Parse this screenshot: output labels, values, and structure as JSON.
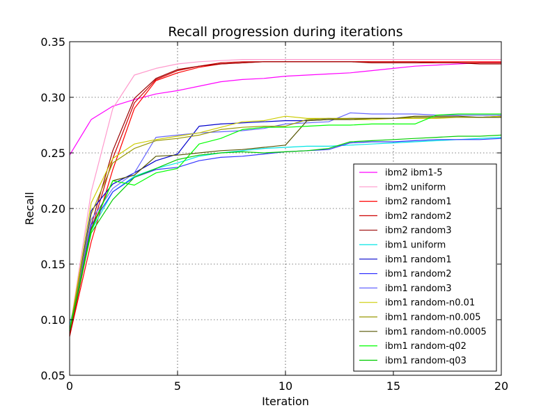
{
  "chart_data": {
    "type": "line",
    "title": "Recall progression during iterations",
    "xlabel": "Iteration",
    "ylabel": "Recall",
    "xlim": [
      0,
      20
    ],
    "ylim": [
      0.05,
      0.35
    ],
    "xticks": [
      0,
      5,
      10,
      15,
      20
    ],
    "yticks": [
      0.05,
      0.1,
      0.15,
      0.2,
      0.25,
      0.3,
      0.35
    ],
    "xtick_labels": [
      "0",
      "5",
      "10",
      "15",
      "20"
    ],
    "ytick_labels": [
      "0.05",
      "0.10",
      "0.15",
      "0.20",
      "0.25",
      "0.30",
      "0.35"
    ],
    "grid": true,
    "legend_position": "lower-right",
    "x": [
      0,
      1,
      2,
      3,
      4,
      5,
      6,
      7,
      8,
      9,
      10,
      11,
      12,
      13,
      14,
      15,
      16,
      17,
      18,
      19,
      20
    ],
    "series": [
      {
        "name": "ibm2 ibm1-5",
        "color": "#ff00ff",
        "values": [
          0.248,
          0.28,
          0.292,
          0.298,
          0.303,
          0.306,
          0.31,
          0.314,
          0.316,
          0.317,
          0.319,
          0.32,
          0.321,
          0.322,
          0.324,
          0.326,
          0.328,
          0.329,
          0.33,
          0.331,
          0.331
        ]
      },
      {
        "name": "ibm2 uniform",
        "color": "#ff99cc",
        "values": [
          0.09,
          0.215,
          0.29,
          0.32,
          0.326,
          0.33,
          0.332,
          0.333,
          0.334,
          0.334,
          0.334,
          0.334,
          0.334,
          0.334,
          0.334,
          0.334,
          0.334,
          0.334,
          0.334,
          0.334,
          0.334
        ]
      },
      {
        "name": "ibm2 random1",
        "color": "#ff0000",
        "values": [
          0.085,
          0.17,
          0.235,
          0.29,
          0.315,
          0.322,
          0.327,
          0.33,
          0.331,
          0.332,
          0.332,
          0.332,
          0.332,
          0.332,
          0.332,
          0.332,
          0.332,
          0.332,
          0.332,
          0.332,
          0.332
        ]
      },
      {
        "name": "ibm2 random2",
        "color": "#cc0000",
        "values": [
          0.085,
          0.18,
          0.245,
          0.295,
          0.316,
          0.324,
          0.328,
          0.331,
          0.332,
          0.332,
          0.332,
          0.332,
          0.332,
          0.332,
          0.332,
          0.332,
          0.332,
          0.331,
          0.331,
          0.331,
          0.331
        ]
      },
      {
        "name": "ibm2 random3",
        "color": "#990000",
        "values": [
          0.088,
          0.185,
          0.252,
          0.299,
          0.317,
          0.325,
          0.328,
          0.33,
          0.331,
          0.332,
          0.332,
          0.332,
          0.332,
          0.332,
          0.331,
          0.331,
          0.331,
          0.331,
          0.331,
          0.33,
          0.33
        ]
      },
      {
        "name": "ibm1 uniform",
        "color": "#00e5e5",
        "values": [
          0.095,
          0.18,
          0.215,
          0.229,
          0.236,
          0.241,
          0.247,
          0.25,
          0.252,
          0.254,
          0.255,
          0.256,
          0.256,
          0.257,
          0.258,
          0.259,
          0.26,
          0.261,
          0.262,
          0.263,
          0.264
        ]
      },
      {
        "name": "ibm1 random1",
        "color": "#0000cc",
        "values": [
          0.09,
          0.198,
          0.222,
          0.232,
          0.243,
          0.249,
          0.274,
          0.276,
          0.277,
          0.278,
          0.279,
          0.279,
          0.28,
          0.281,
          0.281,
          0.281,
          0.282,
          0.282,
          0.282,
          0.282,
          0.283
        ]
      },
      {
        "name": "ibm1 random2",
        "color": "#3333ff",
        "values": [
          0.09,
          0.185,
          0.215,
          0.228,
          0.235,
          0.237,
          0.243,
          0.246,
          0.247,
          0.249,
          0.251,
          0.252,
          0.253,
          0.259,
          0.26,
          0.26,
          0.261,
          0.262,
          0.262,
          0.262,
          0.263
        ]
      },
      {
        "name": "ibm1 random3",
        "color": "#6666ff",
        "values": [
          0.09,
          0.19,
          0.218,
          0.232,
          0.264,
          0.266,
          0.268,
          0.269,
          0.27,
          0.272,
          0.276,
          0.277,
          0.278,
          0.286,
          0.285,
          0.285,
          0.285,
          0.284,
          0.284,
          0.284,
          0.284
        ]
      },
      {
        "name": "ibm1 random-n0.01",
        "color": "#cccc00",
        "values": [
          0.09,
          0.205,
          0.245,
          0.258,
          0.262,
          0.265,
          0.268,
          0.273,
          0.278,
          0.279,
          0.283,
          0.281,
          0.281,
          0.28,
          0.28,
          0.281,
          0.281,
          0.281,
          0.282,
          0.282,
          0.283
        ]
      },
      {
        "name": "ibm1 random-n0.005",
        "color": "#999900",
        "values": [
          0.09,
          0.195,
          0.241,
          0.254,
          0.261,
          0.263,
          0.266,
          0.271,
          0.273,
          0.274,
          0.274,
          0.28,
          0.281,
          0.281,
          0.281,
          0.281,
          0.282,
          0.282,
          0.282,
          0.282,
          0.282
        ]
      },
      {
        "name": "ibm1 random-n0.0005",
        "color": "#555500",
        "values": [
          0.09,
          0.182,
          0.225,
          0.23,
          0.247,
          0.248,
          0.25,
          0.252,
          0.253,
          0.255,
          0.257,
          0.279,
          0.28,
          0.28,
          0.281,
          0.281,
          0.283,
          0.283,
          0.283,
          0.282,
          0.282
        ]
      },
      {
        "name": "ibm1 random-q02",
        "color": "#00ff00",
        "values": [
          0.09,
          0.18,
          0.225,
          0.221,
          0.232,
          0.236,
          0.258,
          0.263,
          0.271,
          0.273,
          0.273,
          0.274,
          0.275,
          0.275,
          0.276,
          0.276,
          0.276,
          0.284,
          0.285,
          0.285,
          0.285
        ]
      },
      {
        "name": "ibm1 random-q03",
        "color": "#00cc00",
        "values": [
          0.09,
          0.178,
          0.208,
          0.228,
          0.236,
          0.244,
          0.248,
          0.25,
          0.251,
          0.25,
          0.251,
          0.252,
          0.254,
          0.26,
          0.261,
          0.262,
          0.263,
          0.264,
          0.265,
          0.265,
          0.266
        ]
      }
    ]
  }
}
